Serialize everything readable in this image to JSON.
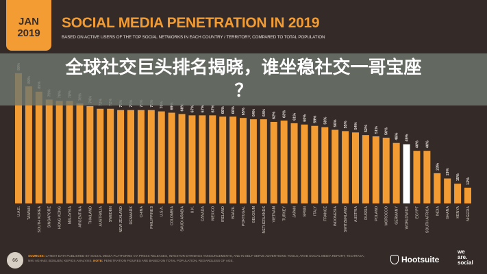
{
  "header": {
    "date_line1": "JAN",
    "date_line2": "2019",
    "title": "SOCIAL MEDIA PENETRATION IN 2019",
    "subtitle": "BASED ON ACTIVE USERS OF THE TOP SOCIAL NETWORKS IN EACH COUNTRY / TERRITORY, COMPARED TO TOTAL POPULATION"
  },
  "overlay": {
    "headline_line1": "全球社交巨头排名揭晓，谁坐稳社交一哥宝座",
    "headline_line2": "？"
  },
  "footer": {
    "page_number": "66",
    "sources_label": "SOURCES:",
    "sources_text": "LATEST DATA PUBLISHED BY SOCIAL MEDIA PLATFORMS VIA PRESS RELEASES, INVESTOR EARNINGS ANNOUNCEMENTS, AND IN SELF-SERVE ADVERTISING TOOLS; ARAB SOCIAL MEDIA REPORT; TECHRASA; NIKI AGHAEI; BOSLIEN; KEPIOS ANALYSIS.",
    "note_label": "NOTE:",
    "note_text": "PENETRATION FIGURES ARE BASED ON TOTAL POPULATION, REGARDLESS OF AGE.",
    "brand1": "Hootsuite",
    "brand2_line1": "we",
    "brand2_line2": "are.",
    "brand2_line3": "social"
  },
  "colors": {
    "background": "#342b28",
    "bar": "#f39c34",
    "highlight_bar": "#ffffff",
    "accent": "#f39c34"
  },
  "chart_data": {
    "type": "bar",
    "title": "SOCIAL MEDIA PENETRATION IN 2019",
    "categories": [
      "U.A.E.",
      "TAIWAN",
      "SOUTH KOREA",
      "SINGAPORE",
      "HONG KONG",
      "MALAYSIA",
      "ARGENTINA",
      "THAILAND",
      "AUSTRALIA",
      "SWEDEN",
      "NEW ZEALAND",
      "DENMARK",
      "CHINA",
      "PHILIPPINES",
      "U.S.A.",
      "COLOMBIA",
      "SAUDI ARABIA",
      "U.K.",
      "CANADA",
      "MEXICO",
      "IRELAND",
      "BRAZIL",
      "PORTUGAL",
      "BELGIUM",
      "NETHERLANDS",
      "VIETNAM",
      "TURKEY",
      "JAPAN",
      "SPAIN",
      "ITALY",
      "FRANCE",
      "INDONESIA",
      "SWITZERLAND",
      "AUSTRIA",
      "RUSSIA",
      "POLAND",
      "MOROCCO",
      "GERMANY",
      "WORLDWIDE",
      "EGYPT",
      "SOUTH AFRICA",
      "INDIA",
      "GHANA",
      "KENYA",
      "NIGERIA"
    ],
    "values": [
      99,
      89,
      85,
      79,
      78,
      78,
      76,
      74,
      72,
      72,
      71,
      71,
      71,
      71,
      70,
      69,
      68,
      67,
      67,
      67,
      66,
      66,
      65,
      64,
      64,
      62,
      63,
      61,
      60,
      59,
      58,
      56,
      55,
      54,
      52,
      51,
      50,
      46,
      45,
      40,
      40,
      23,
      19,
      15,
      12
    ],
    "highlight": "WORLDWIDE",
    "value_suffix": "%",
    "ylim": [
      0,
      100
    ],
    "grid": false
  }
}
